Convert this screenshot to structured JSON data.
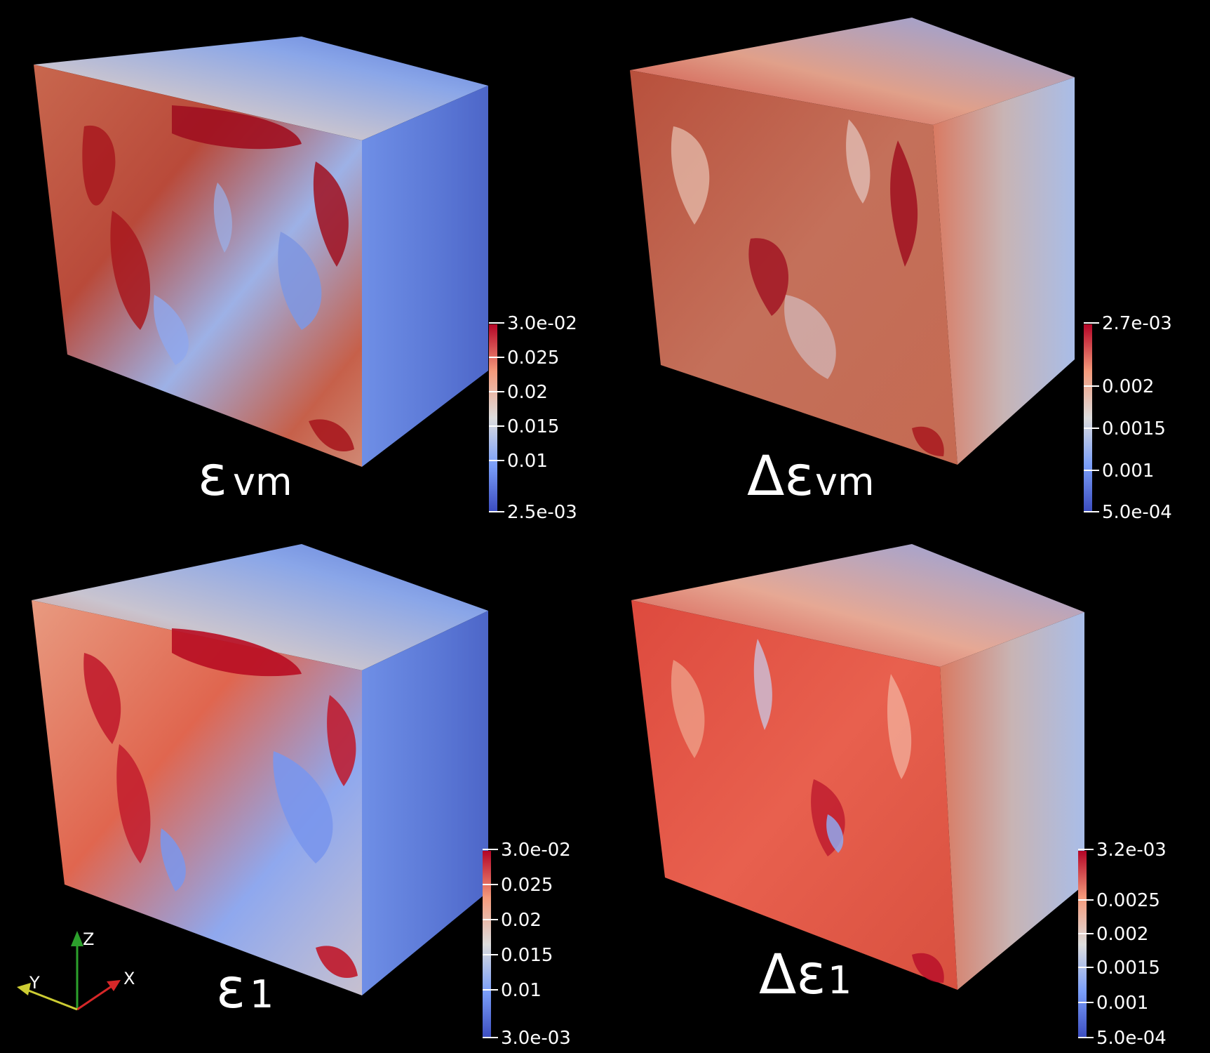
{
  "colors": {
    "background": "#000000",
    "cool": "#3b4cc0",
    "mid": "#dddddd",
    "warm": "#b40426",
    "axis_x": "#d62728",
    "axis_y": "#cccc33",
    "axis_z": "#2ca02c"
  },
  "panels": [
    {
      "id": "evm",
      "symbol": "ε",
      "subscript": "vm",
      "colorbar": {
        "ticks": [
          "3.0e-02",
          "0.025",
          "0.02",
          "0.015",
          "0.01",
          "2.5e-03"
        ]
      }
    },
    {
      "id": "d-evm",
      "symbol": "Δε",
      "subscript": "vm",
      "colorbar": {
        "ticks": [
          "2.7e-03",
          "0.002",
          "0.0015",
          "0.001",
          "5.0e-04"
        ]
      }
    },
    {
      "id": "e1",
      "symbol": "ε",
      "subscript": "1",
      "colorbar": {
        "ticks": [
          "3.0e-02",
          "0.025",
          "0.02",
          "0.015",
          "0.01",
          "3.0e-03"
        ]
      }
    },
    {
      "id": "d-e1",
      "symbol": "Δε",
      "subscript": "1",
      "colorbar": {
        "ticks": [
          "3.2e-03",
          "0.0025",
          "0.002",
          "0.0015",
          "0.001",
          "5.0e-04"
        ]
      }
    }
  ],
  "axes_triad": {
    "x": "X",
    "y": "Y",
    "z": "Z"
  }
}
